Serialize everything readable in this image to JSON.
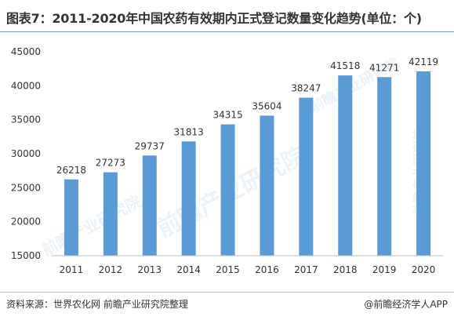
{
  "title": "图表7：2011-2020年中国农药有效期内正式登记数量变化趋势(单位：个)",
  "footer": {
    "source": "资料来源：世界农化网 前瞻产业研究院整理",
    "brand": "@前瞻经济学人APP"
  },
  "watermark": {
    "text": "前瞻产业研究院"
  },
  "colors": {
    "bar": "#5b9bd5",
    "text": "#333333",
    "title_rule": "#5b9bd5",
    "axis": "#bfbfbf",
    "watermark": "#5b9bd5"
  },
  "chart_data": {
    "type": "bar",
    "title": "",
    "xlabel": "",
    "ylabel": "",
    "categories": [
      "2011",
      "2012",
      "2013",
      "2014",
      "2015",
      "2016",
      "2017",
      "2018",
      "2019",
      "2020"
    ],
    "values": [
      26218,
      27273,
      29737,
      31813,
      34315,
      35604,
      38247,
      41518,
      41271,
      42119
    ],
    "ylim": [
      15000,
      45000
    ],
    "yticks": [
      15000,
      20000,
      25000,
      30000,
      35000,
      40000,
      45000
    ],
    "grid": false,
    "legend": "none",
    "data_labels": true
  }
}
